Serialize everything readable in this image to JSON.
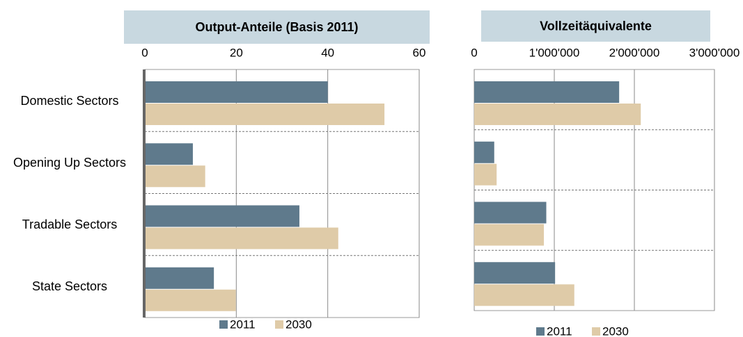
{
  "chart_data": [
    {
      "type": "bar",
      "orientation": "horizontal",
      "title": "Output-Anteile (Basis 2011)",
      "categories": [
        "Domestic Sectors",
        "Opening Up Sectors",
        "Tradable Sectors",
        "State Sectors"
      ],
      "series": [
        {
          "name": "2011",
          "color": "#5f7a8c",
          "values": [
            40.0,
            10.5,
            33.8,
            15.1
          ]
        },
        {
          "name": "2030",
          "color": "#dfcba8",
          "values": [
            52.4,
            13.2,
            42.3,
            19.9
          ]
        }
      ],
      "xlim": [
        0,
        60
      ],
      "xticks": [
        0,
        20,
        40,
        60
      ],
      "grid": true
    },
    {
      "type": "bar",
      "orientation": "horizontal",
      "title": "Vollzeitäquivalente",
      "series": [
        {
          "name": "2011",
          "color": "#5f7a8c",
          "values": [
            1810000,
            250000,
            900000,
            1010000
          ]
        },
        {
          "name": "2030",
          "color": "#dfcba8",
          "values": [
            2080000,
            280000,
            870000,
            1250000
          ]
        }
      ],
      "xlim": [
        0,
        3000000
      ],
      "xticks": [
        0,
        {
          "value": 1000000,
          "label": "1'000'000"
        },
        {
          "value": 2000000,
          "label": "2'000'000"
        },
        {
          "value": 3000000,
          "label": "3'000'000"
        }
      ],
      "grid": true
    }
  ]
}
